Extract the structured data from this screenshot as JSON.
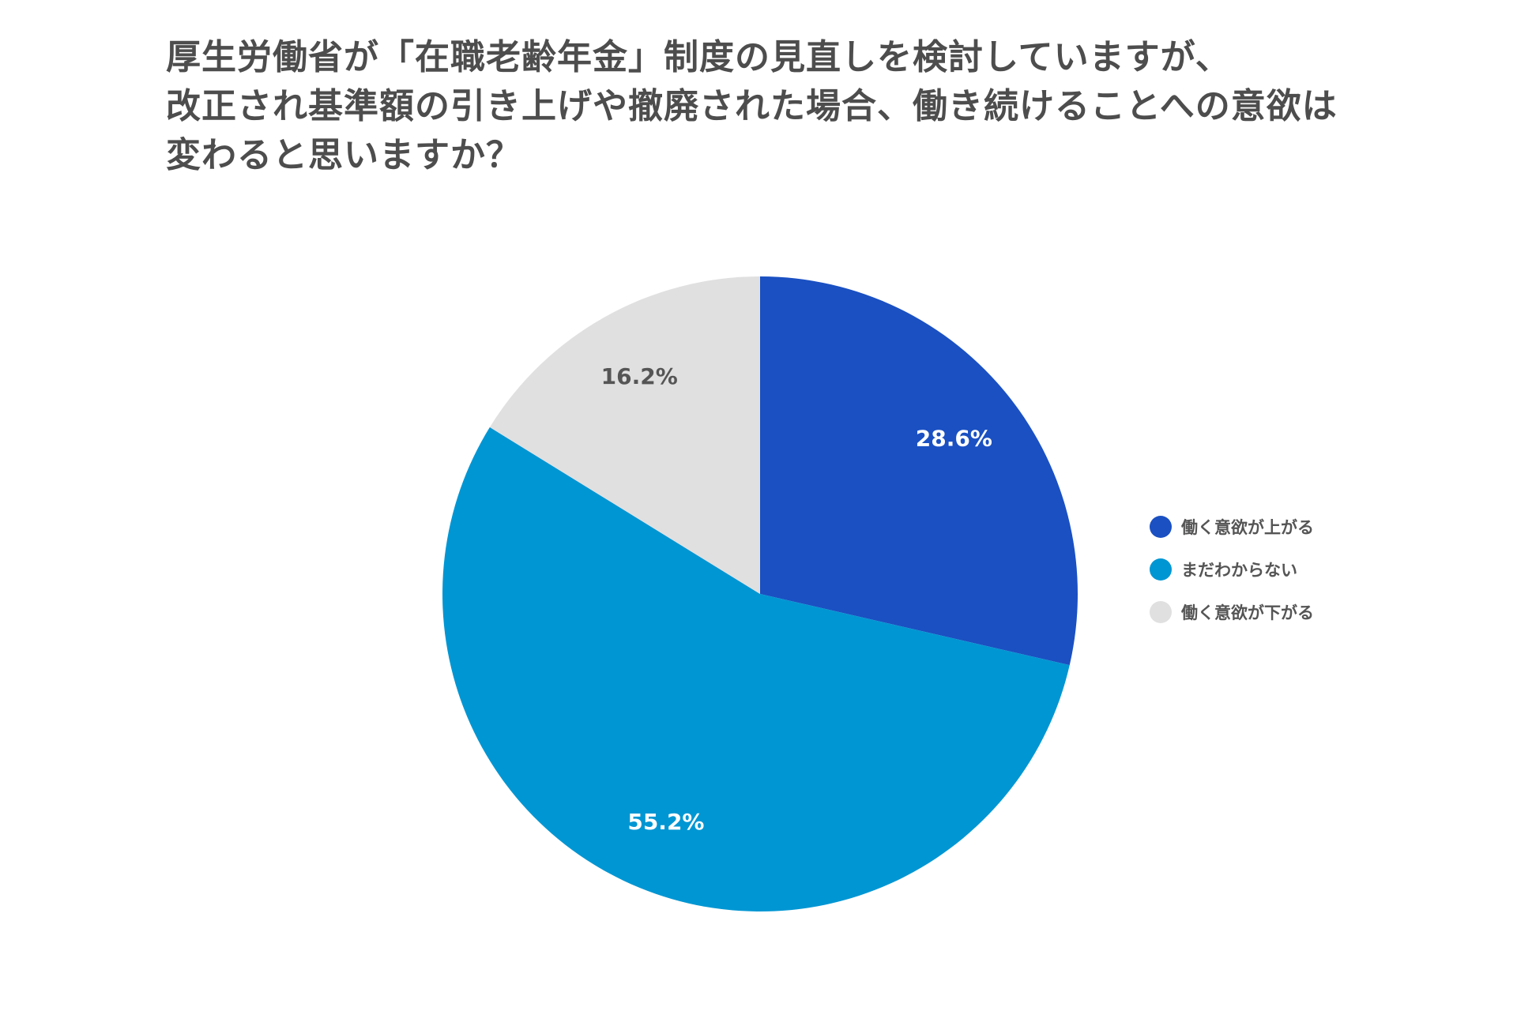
{
  "chart_data": {
    "type": "pie",
    "title_lines": [
      "厚生労働省が「在職老齢年金」制度の見直しを検討していますが、",
      "改正され基準額の引き上げや撤廃された場合、働き続けることへの意欲は",
      "変わると思いますか？"
    ],
    "slices": [
      {
        "label": "働く意欲が上がる",
        "value": 28.6,
        "value_label": "28.6%",
        "color": "#1a50c2",
        "label_color": "#ffffff"
      },
      {
        "label": "まだわからない",
        "value": 55.2,
        "value_label": "55.2%",
        "color": "#0096d3",
        "label_color": "#ffffff"
      },
      {
        "label": "働く意欲が下がる",
        "value": 16.2,
        "value_label": "16.2%",
        "color": "#e0e0e0",
        "label_color": "#555555"
      }
    ],
    "start_angle": "12 o'clock",
    "direction": "clockwise",
    "legend_position": "right"
  }
}
